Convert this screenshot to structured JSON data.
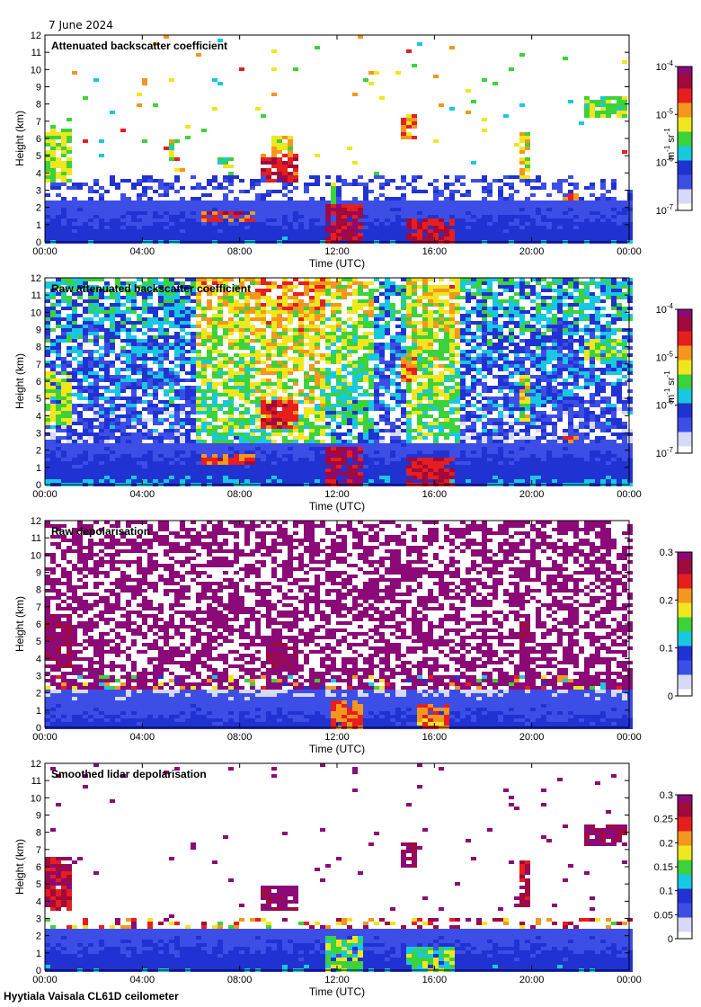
{
  "date_label": "7 June 2024",
  "footer_label": "Hyytiala Vaisala CL61D ceilometer",
  "x_axis": {
    "label": "Time (UTC)",
    "range": [
      0,
      24
    ],
    "ticks": [
      0,
      4,
      8,
      12,
      16,
      20,
      24
    ],
    "tick_labels": [
      "00:00",
      "04:00",
      "08:00",
      "12:00",
      "16:00",
      "20:00",
      "00:00"
    ]
  },
  "y_axis": {
    "label": "Height (km)",
    "range": [
      0,
      12
    ],
    "ticks": [
      0,
      1,
      2,
      3,
      4,
      5,
      6,
      7,
      8,
      9,
      10,
      11,
      12
    ],
    "tick_labels": [
      "0",
      "1",
      "2",
      "3",
      "4",
      "5",
      "6",
      "7",
      "8",
      "9",
      "10",
      "11",
      "12"
    ]
  },
  "colors": {
    "white": "#ffffff",
    "pale_blue": "#d6d9f7",
    "blue": "#3c4ee6",
    "deep_blue": "#2132d2",
    "cyan": "#18c8e0",
    "green": "#3cd23c",
    "yellow": "#f0e61e",
    "orange": "#f5961e",
    "red": "#e61e1e",
    "dark_red": "#a00a3c",
    "purple": "#8c0a78"
  },
  "chart_data": [
    {
      "type": "heatmap",
      "title": "Attenuated backscatter coefficient",
      "xlabel": "Time (UTC)",
      "ylabel": "Height (km)",
      "xlim": [
        0,
        24
      ],
      "ylim": [
        0,
        12
      ],
      "colorbar": {
        "label_base": "m",
        "label_exp1": "-1",
        "label_mid": " sr",
        "label_exp2": "-1",
        "scale": "log",
        "ticks": [
          {
            "value": 1e-07,
            "base": "10",
            "exp": "-7"
          },
          {
            "value": 1e-06,
            "base": "10",
            "exp": "-6"
          },
          {
            "value": 1e-05,
            "base": "10",
            "exp": "-5"
          },
          {
            "value": 0.0001,
            "base": "10",
            "exp": "-4"
          }
        ]
      },
      "background_noise": "low",
      "boundary_layer": {
        "top_km": 2.6,
        "level": 0.18
      },
      "features": [
        {
          "t0": 0.0,
          "t1": 1.0,
          "h0": 3.6,
          "h1": 6.6,
          "level": 0.55
        },
        {
          "t0": 4.9,
          "t1": 5.2,
          "h0": 4.8,
          "h1": 6.0,
          "level": 0.5
        },
        {
          "t0": 6.9,
          "t1": 7.7,
          "h0": 4.4,
          "h1": 5.0,
          "level": 0.5
        },
        {
          "t0": 8.8,
          "t1": 10.2,
          "h0": 3.6,
          "h1": 5.2,
          "level": 0.82
        },
        {
          "t0": 9.3,
          "t1": 10.1,
          "h0": 5.2,
          "h1": 6.2,
          "level": 0.6
        },
        {
          "t0": 6.4,
          "t1": 8.6,
          "h0": 1.2,
          "h1": 1.9,
          "level": 0.78
        },
        {
          "t0": 11.5,
          "t1": 13.0,
          "h0": 0.0,
          "h1": 2.2,
          "level": 0.9
        },
        {
          "t0": 11.6,
          "t1": 11.8,
          "h0": 2.2,
          "h1": 3.6,
          "level": 0.55
        },
        {
          "t0": 14.6,
          "t1": 15.1,
          "h0": 6.0,
          "h1": 7.5,
          "level": 0.7
        },
        {
          "t0": 14.8,
          "t1": 16.8,
          "h0": 0.0,
          "h1": 1.5,
          "level": 0.85
        },
        {
          "t0": 19.3,
          "t1": 19.8,
          "h0": 3.8,
          "h1": 6.4,
          "level": 0.6
        },
        {
          "t0": 21.2,
          "t1": 21.9,
          "h0": 2.5,
          "h1": 3.0,
          "level": 0.78
        },
        {
          "t0": 22.0,
          "t1": 23.9,
          "h0": 7.2,
          "h1": 8.5,
          "level": 0.52
        }
      ]
    },
    {
      "type": "heatmap",
      "title": "Raw attenuated backscatter coefficient",
      "xlabel": "Time (UTC)",
      "ylabel": "Height (km)",
      "xlim": [
        0,
        24
      ],
      "ylim": [
        0,
        12
      ],
      "colorbar": {
        "label_base": "m",
        "label_exp1": "-1",
        "label_mid": " sr",
        "label_exp2": "-1",
        "scale": "log",
        "ticks": [
          {
            "value": 1e-07,
            "base": "10",
            "exp": "-7"
          },
          {
            "value": 1e-06,
            "base": "10",
            "exp": "-6"
          },
          {
            "value": 1e-05,
            "base": "10",
            "exp": "-5"
          },
          {
            "value": 0.0001,
            "base": "10",
            "exp": "-4"
          }
        ]
      },
      "background_noise": "high",
      "boundary_layer": {
        "top_km": 2.6,
        "level": 0.2
      },
      "noise_bands": [
        {
          "t0": 6.2,
          "t1": 8.5,
          "level": 0.45
        },
        {
          "t0": 8.5,
          "t1": 11.5,
          "level": 0.5
        },
        {
          "t0": 11.5,
          "t1": 13.5,
          "level": 0.4
        },
        {
          "t0": 14.8,
          "t1": 16.9,
          "level": 0.45
        }
      ],
      "features": [
        {
          "t0": 0.0,
          "t1": 1.0,
          "h0": 3.6,
          "h1": 6.6,
          "level": 0.55
        },
        {
          "t0": 4.9,
          "t1": 5.2,
          "h0": 4.8,
          "h1": 6.0,
          "level": 0.5
        },
        {
          "t0": 8.8,
          "t1": 10.2,
          "h0": 3.4,
          "h1": 5.0,
          "level": 0.82
        },
        {
          "t0": 6.4,
          "t1": 8.6,
          "h0": 1.2,
          "h1": 1.9,
          "level": 0.78
        },
        {
          "t0": 11.5,
          "t1": 13.0,
          "h0": 0.0,
          "h1": 2.2,
          "level": 0.9
        },
        {
          "t0": 14.6,
          "t1": 15.1,
          "h0": 6.0,
          "h1": 7.5,
          "level": 0.7
        },
        {
          "t0": 14.8,
          "t1": 16.8,
          "h0": 0.0,
          "h1": 1.6,
          "level": 0.85
        },
        {
          "t0": 19.3,
          "t1": 19.8,
          "h0": 3.8,
          "h1": 6.4,
          "level": 0.6
        },
        {
          "t0": 21.2,
          "t1": 21.9,
          "h0": 2.5,
          "h1": 3.0,
          "level": 0.78
        },
        {
          "t0": 22.0,
          "t1": 23.9,
          "h0": 7.2,
          "h1": 8.5,
          "level": 0.5
        }
      ]
    },
    {
      "type": "heatmap",
      "title": "Raw depolarisation",
      "xlabel": "Time (UTC)",
      "ylabel": "Height (km)",
      "xlim": [
        0,
        24
      ],
      "ylim": [
        0,
        12
      ],
      "colorbar": {
        "scale": "linear",
        "ticks": [
          {
            "value": 0,
            "label": "0"
          },
          {
            "value": 0.1,
            "label": "0.1"
          },
          {
            "value": 0.2,
            "label": "0.2"
          },
          {
            "value": 0.3,
            "label": "0.3"
          }
        ]
      },
      "background_noise": "depol",
      "boundary_layer": {
        "top_km": 2.3,
        "level": 0.15
      },
      "features": [
        {
          "t0": 0.0,
          "t1": 1.0,
          "h0": 3.6,
          "h1": 6.6,
          "level": 0.97
        },
        {
          "t0": 8.9,
          "t1": 10.3,
          "h0": 3.4,
          "h1": 5.0,
          "level": 0.98
        },
        {
          "t0": 11.7,
          "t1": 12.9,
          "h0": 0.0,
          "h1": 1.6,
          "level": 0.75
        },
        {
          "t0": 15.2,
          "t1": 16.6,
          "h0": 0.0,
          "h1": 1.5,
          "level": 0.72
        },
        {
          "t0": 19.3,
          "t1": 19.8,
          "h0": 3.8,
          "h1": 6.2,
          "level": 0.97
        }
      ]
    },
    {
      "type": "heatmap",
      "title": "Smoothed lidar depolarisation",
      "xlabel": "Time (UTC)",
      "ylabel": "Height (km)",
      "xlim": [
        0,
        24
      ],
      "ylim": [
        0,
        12
      ],
      "colorbar": {
        "scale": "linear",
        "ticks": [
          {
            "value": 0,
            "label": "0"
          },
          {
            "value": 0.05,
            "label": "0.05"
          },
          {
            "value": 0.1,
            "label": "0.1"
          },
          {
            "value": 0.15,
            "label": "0.15"
          },
          {
            "value": 0.2,
            "label": "0.2"
          },
          {
            "value": 0.25,
            "label": "0.25"
          },
          {
            "value": 0.3,
            "label": "0.3"
          }
        ]
      },
      "background_noise": "sparse",
      "boundary_layer": {
        "top_km": 2.6,
        "level": 0.18
      },
      "features": [
        {
          "t0": 0.0,
          "t1": 1.0,
          "h0": 3.6,
          "h1": 6.6,
          "level": 0.9
        },
        {
          "t0": 8.8,
          "t1": 10.2,
          "h0": 3.6,
          "h1": 5.0,
          "level": 0.98
        },
        {
          "t0": 11.5,
          "t1": 13.0,
          "h0": 0.0,
          "h1": 2.0,
          "level": 0.5
        },
        {
          "t0": 14.6,
          "t1": 15.1,
          "h0": 6.0,
          "h1": 7.5,
          "level": 0.97
        },
        {
          "t0": 14.8,
          "t1": 16.8,
          "h0": 0.0,
          "h1": 1.5,
          "level": 0.5
        },
        {
          "t0": 19.3,
          "t1": 19.8,
          "h0": 3.8,
          "h1": 6.4,
          "level": 0.9
        },
        {
          "t0": 22.0,
          "t1": 23.9,
          "h0": 7.2,
          "h1": 8.5,
          "level": 0.97
        }
      ]
    }
  ]
}
